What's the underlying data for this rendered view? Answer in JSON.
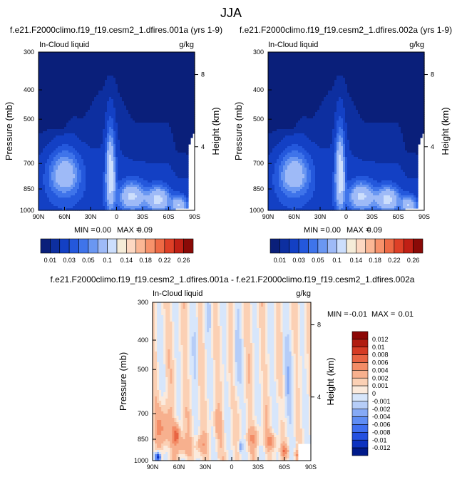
{
  "page_title": "JJA",
  "colors": {
    "abs_scale": [
      "#0a1f7a",
      "#0d2fa0",
      "#1340c4",
      "#2458dc",
      "#3f74ea",
      "#6a97f2",
      "#9ebaf7",
      "#ccdefc",
      "#f5ecd8",
      "#fdd8c2",
      "#fbb795",
      "#f7926b",
      "#ee6a45",
      "#de4027",
      "#c02015",
      "#8a0a07"
    ],
    "diff_scale": [
      "#001a8a",
      "#0c32c0",
      "#2450e0",
      "#3f6ff0",
      "#5f8df4",
      "#86aaf6",
      "#b6cdf8",
      "#d7e6fb",
      "#fbeadc",
      "#fbd0b4",
      "#f7b08e",
      "#f38c66",
      "#e86443",
      "#d53b24",
      "#b11c10",
      "#8c0605"
    ]
  },
  "chart_data": [
    {
      "type": "heatmap",
      "title": "f.e21.F2000climo.f19_f19.cesm2_1.dfires.001a (yrs 1-9)",
      "left_label": "In-Cloud liquid",
      "right_label": "g/kg",
      "xlabel": "",
      "ylabel": "Pressure (mb)",
      "y2label": "Height (km)",
      "xticks": [
        "90N",
        "60N",
        "30N",
        "0",
        "30S",
        "60S",
        "90S"
      ],
      "yticks": [
        "300",
        "400",
        "500",
        "700",
        "850",
        "1000"
      ],
      "y2ticks": [
        "8",
        "4"
      ],
      "stats": {
        "min_label": "MIN =",
        "min": "0.00",
        "max_label": "MAX =",
        "max": "0.09"
      },
      "levels": [
        "0.01",
        "0.03",
        "0.05",
        "0.1",
        "0.14",
        "0.18",
        "0.22",
        "0.26"
      ],
      "shading": {
        "lats": [
          90,
          80,
          70,
          60,
          50,
          40,
          30,
          20,
          10,
          0,
          -10,
          -20,
          -30,
          -40,
          -50,
          -60,
          -70,
          -80,
          -90
        ],
        "topLevel": [
          5,
          5,
          5,
          5,
          6,
          6,
          7,
          8,
          8,
          8,
          7,
          6,
          6,
          6,
          6,
          6,
          4,
          4,
          3
        ],
        "peaks": [
          {
            "lat": 60,
            "p": 760,
            "v": 0.055,
            "dl": 18,
            "dp": 130
          },
          {
            "lat": 7,
            "p": 760,
            "v": 0.085,
            "dl": 5,
            "dp": 200
          },
          {
            "lat": -18,
            "p": 900,
            "v": 0.065,
            "dl": 14,
            "dp": 90
          },
          {
            "lat": -48,
            "p": 920,
            "v": 0.07,
            "dl": 12,
            "dp": 80
          },
          {
            "lat": -72,
            "p": 960,
            "v": 0.06,
            "dl": 8,
            "dp": 60
          }
        ]
      },
      "colorbar": {
        "ticks": [
          "0.01",
          "0.03",
          "0.05",
          "0.1",
          "0.14",
          "0.18",
          "0.22",
          "0.26"
        ]
      }
    },
    {
      "type": "heatmap",
      "title": "f.e21.F2000climo.f19_f19.cesm2_1.dfires.002a (yrs 1-9)",
      "left_label": "In-Cloud liquid",
      "right_label": "g/kg",
      "xlabel": "",
      "ylabel": "Pressure (mb)",
      "y2label": "Height (km)",
      "xticks": [
        "90N",
        "60N",
        "30N",
        "0",
        "30S",
        "60S",
        "90S"
      ],
      "yticks": [
        "300",
        "400",
        "500",
        "700",
        "850",
        "1000"
      ],
      "y2ticks": [
        "8",
        "4"
      ],
      "stats": {
        "min_label": "MIN =",
        "min": "0.00",
        "max_label": "MAX =",
        "max": "0.09"
      },
      "levels": [
        "0.01",
        "0.03",
        "0.05",
        "0.1",
        "0.14",
        "0.18",
        "0.22",
        "0.26"
      ],
      "shading": {
        "lats": [
          90,
          80,
          70,
          60,
          50,
          40,
          30,
          20,
          10,
          0,
          -10,
          -20,
          -30,
          -40,
          -50,
          -60,
          -70,
          -80,
          -90
        ],
        "topLevel": [
          5,
          5,
          5,
          5,
          6,
          6,
          7,
          8,
          8,
          8,
          7,
          6,
          6,
          6,
          6,
          6,
          4,
          4,
          3
        ],
        "peaks": [
          {
            "lat": 60,
            "p": 760,
            "v": 0.055,
            "dl": 18,
            "dp": 130
          },
          {
            "lat": 7,
            "p": 760,
            "v": 0.085,
            "dl": 5,
            "dp": 200
          },
          {
            "lat": -18,
            "p": 900,
            "v": 0.065,
            "dl": 14,
            "dp": 90
          },
          {
            "lat": -48,
            "p": 920,
            "v": 0.07,
            "dl": 12,
            "dp": 80
          },
          {
            "lat": -72,
            "p": 960,
            "v": 0.06,
            "dl": 8,
            "dp": 60
          }
        ]
      },
      "colorbar": {
        "ticks": [
          "0.01",
          "0.03",
          "0.05",
          "0.1",
          "0.14",
          "0.18",
          "0.22",
          "0.26"
        ]
      }
    },
    {
      "type": "heatmap",
      "title": "f.e21.F2000climo.f19_f19.cesm2_1.dfires.001a - f.e21.F2000climo.f19_f19.cesm2_1.dfires.002a",
      "left_label": "In-Cloud liquid",
      "right_label": "g/kg",
      "xlabel": "",
      "ylabel": "Pressure (mb)",
      "y2label": "Height (km)",
      "xticks": [
        "90N",
        "60N",
        "30N",
        "0",
        "30S",
        "60S",
        "90S"
      ],
      "yticks": [
        "300",
        "400",
        "500",
        "700",
        "850",
        "1000"
      ],
      "y2ticks": [
        "8",
        "4"
      ],
      "stats": {
        "min_label": "MIN =",
        "min": "-0.01",
        "max_label": "MAX =",
        "max": "0.01"
      },
      "levels": [
        "0.012",
        "0.01",
        "0.008",
        "0.006",
        "0.004",
        "0.002",
        "0.001",
        "0",
        "-0.001",
        "-0.002",
        "-0.004",
        "-0.006",
        "-0.008",
        "-0.01",
        "-0.012"
      ],
      "shading": {
        "blobs": [
          {
            "lat": 78,
            "p": 780,
            "v": 0.004,
            "dl": 8,
            "dp": 120
          },
          {
            "lat": 63,
            "p": 820,
            "v": 0.006,
            "dl": 5,
            "dp": 60
          },
          {
            "lat": 55,
            "p": 900,
            "v": 0.003,
            "dl": 8,
            "dp": 70
          },
          {
            "lat": 35,
            "p": 880,
            "v": 0.003,
            "dl": 6,
            "dp": 60
          },
          {
            "lat": 15,
            "p": 760,
            "v": 0.002,
            "dl": 5,
            "dp": 80
          },
          {
            "lat": -25,
            "p": 840,
            "v": 0.003,
            "dl": 8,
            "dp": 60
          },
          {
            "lat": -45,
            "p": 860,
            "v": 0.004,
            "dl": 6,
            "dp": 50
          },
          {
            "lat": -60,
            "p": 930,
            "v": 0.005,
            "dl": 4,
            "dp": 40
          },
          {
            "lat": -75,
            "p": 960,
            "v": 0.004,
            "dl": 4,
            "dp": 40
          },
          {
            "lat": 84,
            "p": 975,
            "v": -0.012,
            "dl": 3,
            "dp": 35
          },
          {
            "lat": 40,
            "p": 420,
            "v": -0.0015,
            "dl": 4,
            "dp": 160
          },
          {
            "lat": -5,
            "p": 450,
            "v": -0.0015,
            "dl": 4,
            "dp": 200
          },
          {
            "lat": -65,
            "p": 600,
            "v": -0.0015,
            "dl": 10,
            "dp": 200
          },
          {
            "lat": -10,
            "p": 900,
            "v": -0.004,
            "dl": 2,
            "dp": 40
          },
          {
            "lat": 25,
            "p": 320,
            "v": -0.0015,
            "dl": 3,
            "dp": 60
          }
        ]
      },
      "colorbar": {
        "ticks": [
          "0.012",
          "0.01",
          "0.008",
          "0.006",
          "0.004",
          "0.002",
          "0.001",
          "0",
          "-0.001",
          "-0.002",
          "-0.004",
          "-0.006",
          "-0.008",
          "-0.01",
          "-0.012"
        ]
      }
    }
  ]
}
